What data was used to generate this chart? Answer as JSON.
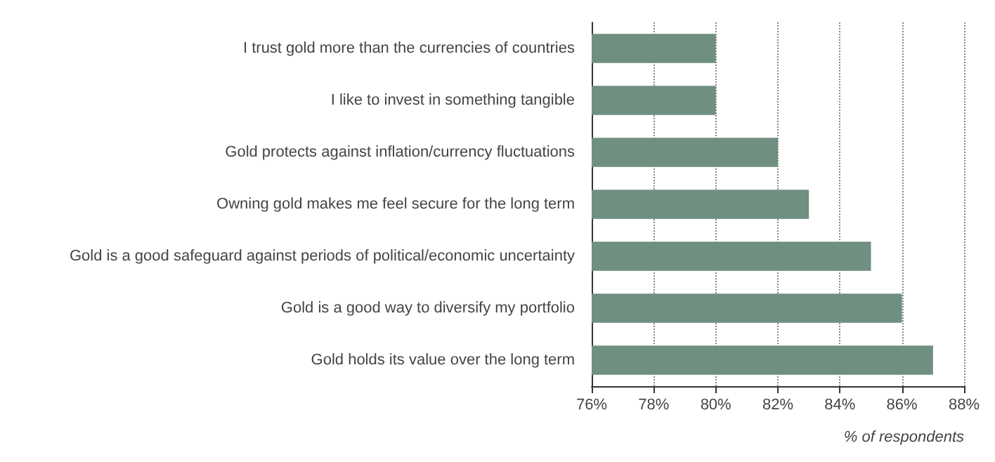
{
  "chart_data": {
    "type": "bar",
    "orientation": "horizontal",
    "xlabel": "% of respondents",
    "categories": [
      "I trust gold more than the currencies of countries",
      "I like to invest in something tangible",
      "Gold protects against inflation/currency fluctuations",
      "Owning gold makes me feel secure for the long term",
      "Gold is a good safeguard against periods of political/economic uncertainty",
      "Gold is a good way to diversify my portfolio",
      "Gold holds its value over the long term"
    ],
    "values": [
      80,
      80,
      82,
      83,
      85,
      86,
      87
    ],
    "color": "#6f8f80",
    "xlim": [
      76,
      88
    ],
    "xticks": [
      {
        "value": 76,
        "label": "76%"
      },
      {
        "value": 78,
        "label": "78%"
      },
      {
        "value": 80,
        "label": "80%"
      },
      {
        "value": 82,
        "label": "82%"
      },
      {
        "value": 84,
        "label": "84%"
      },
      {
        "value": 86,
        "label": "86%"
      },
      {
        "value": 88,
        "label": "88%"
      }
    ],
    "grid": "x"
  }
}
